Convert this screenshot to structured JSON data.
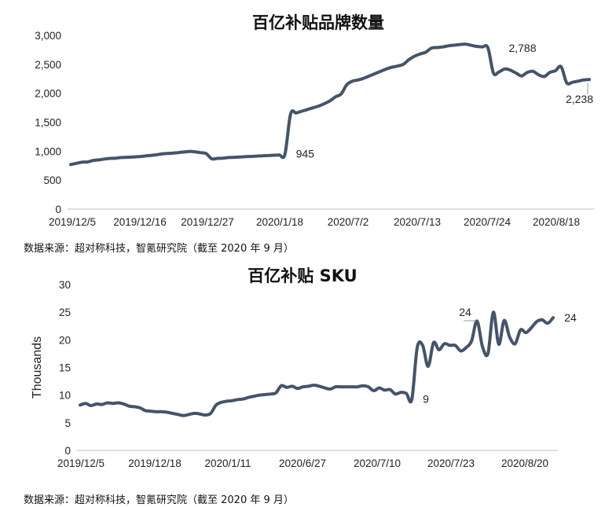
{
  "chart_data": [
    {
      "type": "line",
      "title": "百亿补贴品牌数量",
      "xlabel": "",
      "ylabel": "",
      "ylim": [
        0,
        3000
      ],
      "yticks": [
        "0",
        "500",
        "1,000",
        "1,500",
        "2,000",
        "2,500",
        "3,000"
      ],
      "xticks": [
        "2019/12/5",
        "2019/12/16",
        "2019/12/27",
        "2020/1/18",
        "2020/7/2",
        "2020/7/13",
        "2020/7/24",
        "2020/8/18"
      ],
      "color": "#44546A",
      "annotations": [
        "945",
        "2,788",
        "2,238"
      ],
      "values": [
        770,
        790,
        810,
        815,
        840,
        850,
        865,
        875,
        880,
        890,
        895,
        900,
        905,
        915,
        925,
        935,
        950,
        960,
        965,
        975,
        985,
        995,
        990,
        975,
        960,
        870,
        875,
        880,
        890,
        895,
        900,
        905,
        910,
        915,
        920,
        925,
        930,
        935,
        945,
        1640,
        1660,
        1690,
        1720,
        1750,
        1780,
        1820,
        1870,
        1940,
        1990,
        2150,
        2210,
        2230,
        2260,
        2300,
        2340,
        2380,
        2420,
        2450,
        2470,
        2500,
        2580,
        2640,
        2680,
        2710,
        2780,
        2790,
        2800,
        2820,
        2830,
        2840,
        2850,
        2830,
        2810,
        2800,
        2788,
        2350,
        2370,
        2420,
        2400,
        2350,
        2300,
        2360,
        2380,
        2320,
        2290,
        2360,
        2390,
        2460,
        2180,
        2190,
        2210,
        2230,
        2238
      ]
    },
    {
      "type": "line",
      "title": "百亿补贴 SKU",
      "xlabel": "",
      "ylabel": "Thousands",
      "ylim": [
        0,
        30
      ],
      "yticks": [
        "0",
        "5",
        "10",
        "15",
        "20",
        "25",
        "30"
      ],
      "xticks": [
        "2019/12/5",
        "2019/12/18",
        "2020/1/11",
        "2020/6/27",
        "2020/7/10",
        "2020/7/23",
        "2020/8/20"
      ],
      "color": "#44546A",
      "annotations": [
        "9",
        "24",
        "24"
      ],
      "values": [
        8.2,
        8.5,
        8.1,
        8.4,
        8.3,
        8.6,
        8.5,
        8.6,
        8.4,
        8.0,
        7.9,
        7.7,
        7.2,
        7.1,
        7.0,
        7.0,
        6.9,
        6.7,
        6.5,
        6.3,
        6.5,
        6.7,
        6.6,
        6.4,
        6.7,
        8.2,
        8.7,
        8.9,
        9.0,
        9.2,
        9.3,
        9.6,
        9.8,
        10.0,
        10.1,
        10.2,
        10.4,
        11.7,
        11.4,
        11.6,
        11.2,
        11.5,
        11.6,
        11.8,
        11.6,
        11.3,
        11.1,
        11.5,
        11.5,
        11.5,
        11.5,
        11.5,
        11.7,
        11.5,
        10.8,
        11.3,
        10.9,
        11.0,
        10.2,
        10.5,
        10.3,
        9.2,
        18.6,
        19.0,
        15.2,
        19.5,
        18.2,
        19.3,
        19.0,
        19.0,
        18.0,
        18.6,
        19.8,
        23.4,
        18.8,
        17.5,
        25.0,
        19.2,
        23.5,
        20.5,
        19.3,
        21.8,
        21.3,
        22.2,
        23.3,
        23.6,
        23.0,
        24.0
      ]
    }
  ],
  "sources": [
    "数据来源：超对称科技，智氪研究院（截至 2020 年 9 月）",
    "数据来源：超对称科技，智氪研究院（截至 2020 年 9 月）"
  ]
}
